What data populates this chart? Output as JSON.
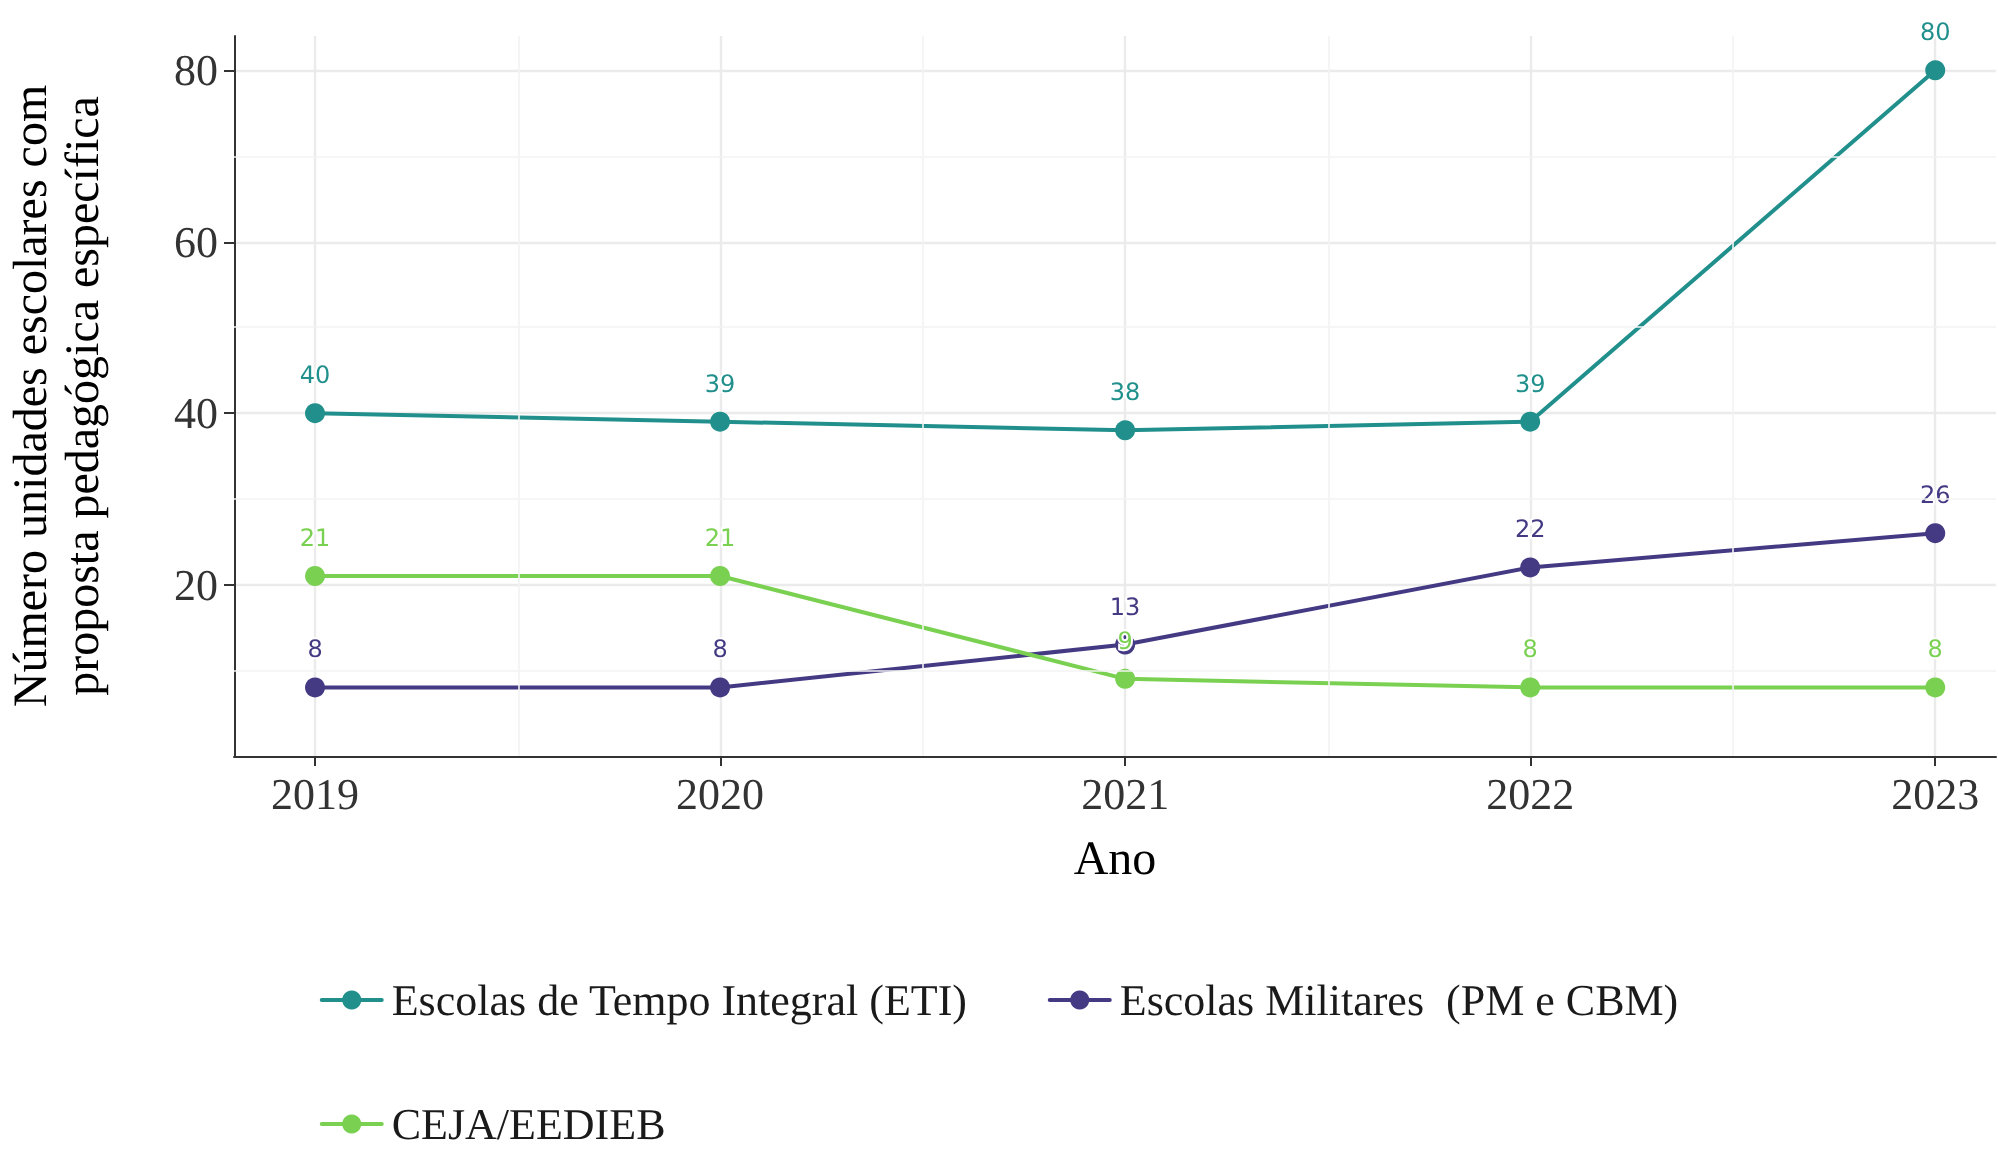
{
  "chart_data": {
    "type": "line",
    "xlabel": "Ano",
    "ylabel": "Número unidades escolares com proposta pedagógica específica",
    "x": [
      2019,
      2020,
      2021,
      2022,
      2023
    ],
    "series": [
      {
        "name": "Escolas de Tempo Integral (ETI)",
        "color": "#21908c",
        "values": [
          40,
          39,
          38,
          39,
          80
        ]
      },
      {
        "name": "Escolas Militares  (PM e CBM)",
        "color": "#443a83",
        "values": [
          8,
          8,
          13,
          22,
          26
        ]
      },
      {
        "name": "CEJA/EEDIEB",
        "color": "#7ad151",
        "values": [
          21,
          21,
          9,
          8,
          8
        ]
      }
    ],
    "xlim": [
      2018.8,
      2023.15
    ],
    "xticks": [
      2019,
      2020,
      2021,
      2022,
      2023
    ],
    "ylim": [
      0,
      84
    ],
    "yticks": [
      20,
      40,
      60,
      80
    ],
    "grid": true,
    "legend": "bottom",
    "marker": "circle",
    "line_style": "solid",
    "data_labels": true
  }
}
